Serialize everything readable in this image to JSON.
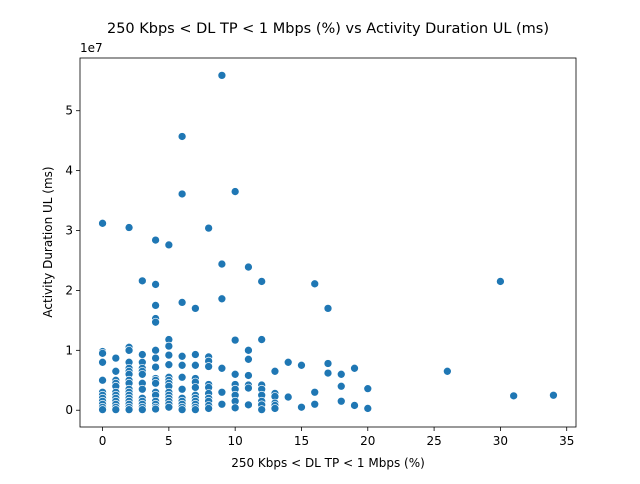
{
  "chart_data": {
    "type": "scatter",
    "title": "250 Kbps < DL TP < 1 Mbps (%) vs Activity Duration UL (ms)",
    "xlabel": "250 Kbps < DL TP < 1 Mbps (%)",
    "ylabel": "Activity Duration UL (ms)",
    "y_offset_label": "1e7",
    "xlim": [
      -1.7,
      35.7
    ],
    "ylim": [
      -2800000,
      58800000
    ],
    "xticks": [
      0,
      5,
      10,
      15,
      20,
      25,
      30,
      35
    ],
    "yticks": [
      0,
      10000000,
      20000000,
      30000000,
      40000000,
      50000000
    ],
    "ytick_labels": [
      "0",
      "1",
      "2",
      "3",
      "4",
      "5"
    ],
    "grid": false,
    "legend": "none",
    "color": "#1f77b4",
    "points": [
      {
        "x": 0,
        "y": 31200000
      },
      {
        "x": 0,
        "y": 9800000
      },
      {
        "x": 0,
        "y": 9500000
      },
      {
        "x": 0,
        "y": 8000000
      },
      {
        "x": 0,
        "y": 5000000
      },
      {
        "x": 0,
        "y": 3000000
      },
      {
        "x": 0,
        "y": 2500000
      },
      {
        "x": 0,
        "y": 2000000
      },
      {
        "x": 0,
        "y": 1500000
      },
      {
        "x": 0,
        "y": 1000000
      },
      {
        "x": 0,
        "y": 500000
      },
      {
        "x": 0,
        "y": 100000
      },
      {
        "x": 1,
        "y": 8700000
      },
      {
        "x": 1,
        "y": 6500000
      },
      {
        "x": 1,
        "y": 5000000
      },
      {
        "x": 1,
        "y": 4500000
      },
      {
        "x": 1,
        "y": 4000000
      },
      {
        "x": 1,
        "y": 3000000
      },
      {
        "x": 1,
        "y": 2500000
      },
      {
        "x": 1,
        "y": 2000000
      },
      {
        "x": 1,
        "y": 1500000
      },
      {
        "x": 1,
        "y": 1000000
      },
      {
        "x": 1,
        "y": 500000
      },
      {
        "x": 1,
        "y": 100000
      },
      {
        "x": 2,
        "y": 30500000
      },
      {
        "x": 2,
        "y": 10500000
      },
      {
        "x": 2,
        "y": 10000000
      },
      {
        "x": 2,
        "y": 8000000
      },
      {
        "x": 2,
        "y": 7000000
      },
      {
        "x": 2,
        "y": 6500000
      },
      {
        "x": 2,
        "y": 6000000
      },
      {
        "x": 2,
        "y": 5000000
      },
      {
        "x": 2,
        "y": 4500000
      },
      {
        "x": 2,
        "y": 3500000
      },
      {
        "x": 2,
        "y": 3000000
      },
      {
        "x": 2,
        "y": 2500000
      },
      {
        "x": 2,
        "y": 2000000
      },
      {
        "x": 2,
        "y": 1500000
      },
      {
        "x": 2,
        "y": 1000000
      },
      {
        "x": 2,
        "y": 500000
      },
      {
        "x": 2,
        "y": 100000
      },
      {
        "x": 3,
        "y": 21600000
      },
      {
        "x": 3,
        "y": 9300000
      },
      {
        "x": 3,
        "y": 8000000
      },
      {
        "x": 3,
        "y": 7000000
      },
      {
        "x": 3,
        "y": 6500000
      },
      {
        "x": 3,
        "y": 6000000
      },
      {
        "x": 3,
        "y": 4500000
      },
      {
        "x": 3,
        "y": 3500000
      },
      {
        "x": 3,
        "y": 2000000
      },
      {
        "x": 3,
        "y": 1500000
      },
      {
        "x": 3,
        "y": 1000000
      },
      {
        "x": 3,
        "y": 500000
      },
      {
        "x": 3,
        "y": 100000
      },
      {
        "x": 4,
        "y": 28400000
      },
      {
        "x": 4,
        "y": 21000000
      },
      {
        "x": 4,
        "y": 17500000
      },
      {
        "x": 4,
        "y": 15300000
      },
      {
        "x": 4,
        "y": 14700000
      },
      {
        "x": 4,
        "y": 10000000
      },
      {
        "x": 4,
        "y": 8700000
      },
      {
        "x": 4,
        "y": 7200000
      },
      {
        "x": 4,
        "y": 5300000
      },
      {
        "x": 4,
        "y": 5000000
      },
      {
        "x": 4,
        "y": 4500000
      },
      {
        "x": 4,
        "y": 3000000
      },
      {
        "x": 4,
        "y": 2500000
      },
      {
        "x": 4,
        "y": 1500000
      },
      {
        "x": 4,
        "y": 1000000
      },
      {
        "x": 4,
        "y": 500000
      },
      {
        "x": 4,
        "y": 200000
      },
      {
        "x": 5,
        "y": 27600000
      },
      {
        "x": 5,
        "y": 11800000
      },
      {
        "x": 5,
        "y": 10700000
      },
      {
        "x": 5,
        "y": 9200000
      },
      {
        "x": 5,
        "y": 7600000
      },
      {
        "x": 5,
        "y": 5500000
      },
      {
        "x": 5,
        "y": 5000000
      },
      {
        "x": 5,
        "y": 4500000
      },
      {
        "x": 5,
        "y": 4000000
      },
      {
        "x": 5,
        "y": 3000000
      },
      {
        "x": 5,
        "y": 2500000
      },
      {
        "x": 5,
        "y": 2000000
      },
      {
        "x": 5,
        "y": 1500000
      },
      {
        "x": 5,
        "y": 1000000
      },
      {
        "x": 5,
        "y": 500000
      },
      {
        "x": 6,
        "y": 45700000
      },
      {
        "x": 6,
        "y": 36100000
      },
      {
        "x": 6,
        "y": 18000000
      },
      {
        "x": 6,
        "y": 9000000
      },
      {
        "x": 6,
        "y": 7500000
      },
      {
        "x": 6,
        "y": 5500000
      },
      {
        "x": 6,
        "y": 3500000
      },
      {
        "x": 6,
        "y": 2000000
      },
      {
        "x": 6,
        "y": 1500000
      },
      {
        "x": 6,
        "y": 1000000
      },
      {
        "x": 6,
        "y": 500000
      },
      {
        "x": 6,
        "y": 100000
      },
      {
        "x": 7,
        "y": 17000000
      },
      {
        "x": 7,
        "y": 9300000
      },
      {
        "x": 7,
        "y": 7500000
      },
      {
        "x": 7,
        "y": 5300000
      },
      {
        "x": 7,
        "y": 4700000
      },
      {
        "x": 7,
        "y": 3800000
      },
      {
        "x": 7,
        "y": 2500000
      },
      {
        "x": 7,
        "y": 2000000
      },
      {
        "x": 7,
        "y": 1500000
      },
      {
        "x": 7,
        "y": 1000000
      },
      {
        "x": 7,
        "y": 500000
      },
      {
        "x": 7,
        "y": 100000
      },
      {
        "x": 8,
        "y": 30400000
      },
      {
        "x": 8,
        "y": 8900000
      },
      {
        "x": 8,
        "y": 8200000
      },
      {
        "x": 8,
        "y": 7300000
      },
      {
        "x": 8,
        "y": 4300000
      },
      {
        "x": 8,
        "y": 3800000
      },
      {
        "x": 8,
        "y": 2800000
      },
      {
        "x": 8,
        "y": 2000000
      },
      {
        "x": 8,
        "y": 1500000
      },
      {
        "x": 8,
        "y": 800000
      },
      {
        "x": 8,
        "y": 300000
      },
      {
        "x": 9,
        "y": 55900000
      },
      {
        "x": 9,
        "y": 24400000
      },
      {
        "x": 9,
        "y": 18600000
      },
      {
        "x": 9,
        "y": 7000000
      },
      {
        "x": 9,
        "y": 3000000
      },
      {
        "x": 9,
        "y": 1000000
      },
      {
        "x": 10,
        "y": 36500000
      },
      {
        "x": 10,
        "y": 11700000
      },
      {
        "x": 10,
        "y": 6000000
      },
      {
        "x": 10,
        "y": 4300000
      },
      {
        "x": 10,
        "y": 3500000
      },
      {
        "x": 10,
        "y": 2500000
      },
      {
        "x": 10,
        "y": 1500000
      },
      {
        "x": 10,
        "y": 400000
      },
      {
        "x": 11,
        "y": 23900000
      },
      {
        "x": 11,
        "y": 10000000
      },
      {
        "x": 11,
        "y": 8500000
      },
      {
        "x": 11,
        "y": 5800000
      },
      {
        "x": 11,
        "y": 4200000
      },
      {
        "x": 11,
        "y": 3700000
      },
      {
        "x": 11,
        "y": 900000
      },
      {
        "x": 12,
        "y": 21500000
      },
      {
        "x": 12,
        "y": 11800000
      },
      {
        "x": 12,
        "y": 4200000
      },
      {
        "x": 12,
        "y": 3500000
      },
      {
        "x": 12,
        "y": 2500000
      },
      {
        "x": 12,
        "y": 1500000
      },
      {
        "x": 12,
        "y": 900000
      },
      {
        "x": 12,
        "y": 100000
      },
      {
        "x": 13,
        "y": 6500000
      },
      {
        "x": 13,
        "y": 2800000
      },
      {
        "x": 13,
        "y": 2300000
      },
      {
        "x": 13,
        "y": 1200000
      },
      {
        "x": 13,
        "y": 800000
      },
      {
        "x": 13,
        "y": 300000
      },
      {
        "x": 14,
        "y": 8000000
      },
      {
        "x": 14,
        "y": 2200000
      },
      {
        "x": 15,
        "y": 7500000
      },
      {
        "x": 15,
        "y": 500000
      },
      {
        "x": 16,
        "y": 21100000
      },
      {
        "x": 16,
        "y": 3000000
      },
      {
        "x": 16,
        "y": 1000000
      },
      {
        "x": 17,
        "y": 17000000
      },
      {
        "x": 17,
        "y": 7800000
      },
      {
        "x": 17,
        "y": 6200000
      },
      {
        "x": 18,
        "y": 6000000
      },
      {
        "x": 18,
        "y": 4000000
      },
      {
        "x": 18,
        "y": 1500000
      },
      {
        "x": 19,
        "y": 7000000
      },
      {
        "x": 19,
        "y": 800000
      },
      {
        "x": 20,
        "y": 3600000
      },
      {
        "x": 20,
        "y": 300000
      },
      {
        "x": 26,
        "y": 6500000
      },
      {
        "x": 30,
        "y": 21500000
      },
      {
        "x": 31,
        "y": 2400000
      },
      {
        "x": 34,
        "y": 2500000
      }
    ]
  }
}
